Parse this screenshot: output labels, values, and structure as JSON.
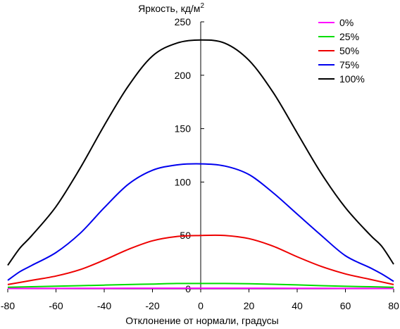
{
  "chart_data": {
    "type": "line",
    "title": "",
    "ylabel": "Яркость, кд/м",
    "ylabel_sup": "2",
    "xlabel": "Отклонение от нормали, градусы",
    "xlim": [
      -80,
      80
    ],
    "ylim": [
      0,
      250
    ],
    "x_ticks": [
      -80,
      -60,
      -40,
      -20,
      0,
      20,
      40,
      60,
      80
    ],
    "y_ticks": [
      0,
      50,
      100,
      150,
      200,
      250
    ],
    "legend_position": "top-right",
    "grid": false,
    "series": [
      {
        "name": "0%",
        "color": "#ff00ff",
        "x": [
          -80,
          -60,
          -40,
          -20,
          0,
          20,
          40,
          60,
          80
        ],
        "values": [
          0.3,
          0.4,
          0.5,
          0.6,
          0.6,
          0.6,
          0.5,
          0.4,
          0.3
        ]
      },
      {
        "name": "25%",
        "color": "#00dd00",
        "x": [
          -80,
          -70,
          -60,
          -50,
          -40,
          -30,
          -20,
          -10,
          0,
          10,
          20,
          30,
          40,
          50,
          60,
          70,
          80
        ],
        "values": [
          1.5,
          2,
          2.5,
          3,
          3.5,
          4,
          4.5,
          5,
          5,
          5,
          4.8,
          4.3,
          3.7,
          3,
          2.4,
          2,
          1.5
        ]
      },
      {
        "name": "50%",
        "color": "#ee0000",
        "x": [
          -80,
          -70,
          -60,
          -50,
          -40,
          -30,
          -20,
          -10,
          0,
          10,
          20,
          30,
          40,
          50,
          60,
          70,
          80
        ],
        "values": [
          4,
          8,
          12,
          18,
          27,
          37,
          45,
          49,
          50,
          50,
          47,
          40,
          30,
          21,
          14,
          9,
          4
        ]
      },
      {
        "name": "75%",
        "color": "#0000ee",
        "x": [
          -80,
          -75,
          -70,
          -60,
          -50,
          -40,
          -30,
          -20,
          -10,
          0,
          10,
          20,
          30,
          40,
          50,
          60,
          70,
          75,
          80
        ],
        "values": [
          8,
          16,
          22,
          34,
          52,
          76,
          98,
          111,
          116,
          117,
          115,
          107,
          90,
          70,
          50,
          31,
          20,
          14,
          7
        ]
      },
      {
        "name": "100%",
        "color": "#000000",
        "x": [
          -80,
          -75,
          -70,
          -60,
          -50,
          -40,
          -30,
          -20,
          -10,
          0,
          10,
          20,
          30,
          40,
          50,
          60,
          70,
          75,
          80
        ],
        "values": [
          22,
          38,
          50,
          77,
          113,
          153,
          190,
          218,
          230,
          233,
          230,
          214,
          184,
          146,
          108,
          76,
          51,
          40,
          23
        ]
      }
    ]
  }
}
